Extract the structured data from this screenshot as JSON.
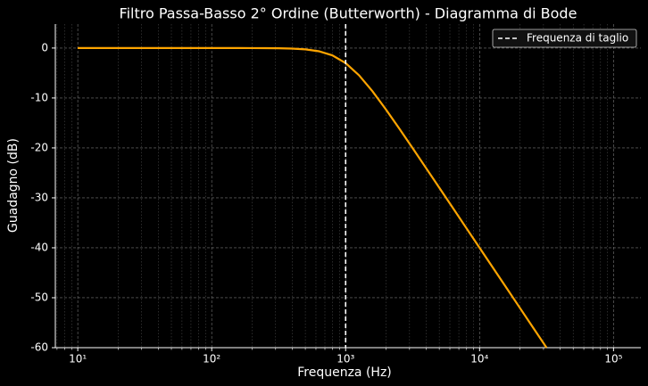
{
  "chart_data": {
    "type": "line",
    "title": "Filtro Passa-Basso 2° Ordine (Butterworth) - Diagramma di Bode",
    "xlabel": "Frequenza (Hz)",
    "ylabel": "Guadagno (dB)",
    "xscale": "log",
    "x": [
      10,
      12.59,
      15.85,
      19.95,
      25.12,
      31.62,
      39.81,
      50.12,
      63.1,
      79.43,
      100,
      125.9,
      158.5,
      199.5,
      251.2,
      316.2,
      398.1,
      501.2,
      631,
      794.3,
      1000,
      1259,
      1585,
      1995,
      2512,
      3162,
      3981,
      5012,
      6310,
      7943,
      10000,
      12589,
      15849,
      19953,
      25119,
      31623
    ],
    "series": [
      {
        "name": null,
        "color": "#ffa500",
        "values": [
          0,
          0,
          0,
          0,
          0,
          0,
          0,
          0,
          0,
          0,
          0,
          -0.001,
          -0.003,
          -0.007,
          -0.017,
          -0.043,
          -0.108,
          -0.266,
          -0.64,
          -1.456,
          -3.01,
          -5.456,
          -8.64,
          -12.27,
          -16.11,
          -20.04,
          -24.02,
          -28.01,
          -32.0,
          -36.0,
          -40.0,
          -44.0,
          -48.0,
          -52.0,
          -56.0,
          -60.0
        ]
      }
    ],
    "vline": {
      "x": 1000,
      "name": "Frequenza di taglio",
      "color": "#ffffff"
    },
    "xlim": [
      6.8,
      160000
    ],
    "ylim": [
      -60,
      4.8
    ],
    "xticks": [
      {
        "value": 10,
        "label": "10¹"
      },
      {
        "value": 100,
        "label": "10²"
      },
      {
        "value": 1000,
        "label": "10³"
      },
      {
        "value": 10000,
        "label": "10⁴"
      },
      {
        "value": 100000,
        "label": "10⁵"
      }
    ],
    "yticks": [
      0,
      -10,
      -20,
      -30,
      -40,
      -50,
      -60
    ],
    "grid": true,
    "minor_grid": true,
    "legend": "upper right"
  }
}
